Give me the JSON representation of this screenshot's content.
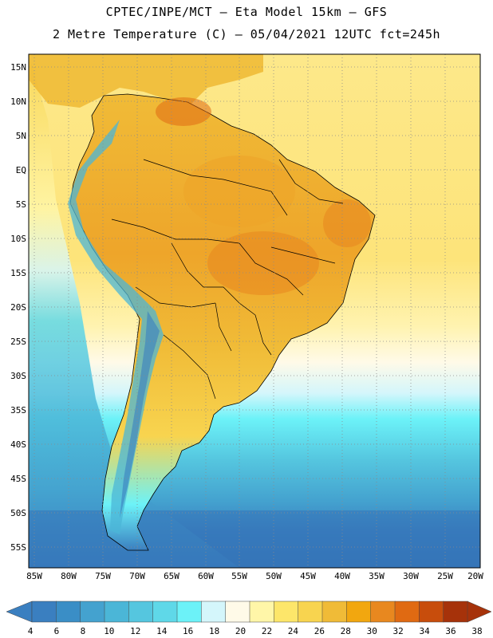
{
  "header": {
    "line1": "CPTEC/INPE/MCT –  Eta Model 15km – GFS",
    "line2": "2 Metre Temperature (C) – 05/04/2021 12UTC fct=245h"
  },
  "map": {
    "lat_labels": [
      "15N",
      "10N",
      "5N",
      "EQ",
      "5S",
      "10S",
      "15S",
      "20S",
      "25S",
      "30S",
      "35S",
      "40S",
      "45S",
      "50S",
      "55S"
    ],
    "lon_labels": [
      "85W",
      "80W",
      "75W",
      "70W",
      "65W",
      "60W",
      "55W",
      "50W",
      "45W",
      "40W",
      "35W",
      "30W",
      "25W",
      "20W"
    ]
  },
  "colorbar": {
    "labels": [
      "4",
      "6",
      "8",
      "10",
      "12",
      "14",
      "16",
      "18",
      "20",
      "22",
      "24",
      "26",
      "28",
      "30",
      "32",
      "34",
      "36",
      "38"
    ],
    "colors": [
      "#3a7fc0",
      "#3a8ec6",
      "#44a2cf",
      "#4bb6d7",
      "#55c6df",
      "#5fd8e8",
      "#6cf2f8",
      "#d4f6fb",
      "#fffae8",
      "#fff6a8",
      "#fde66a",
      "#f8d44f",
      "#f0bb37",
      "#f2a70f",
      "#e8881f",
      "#e06a12",
      "#c84d0c",
      "#a6320a"
    ]
  }
}
